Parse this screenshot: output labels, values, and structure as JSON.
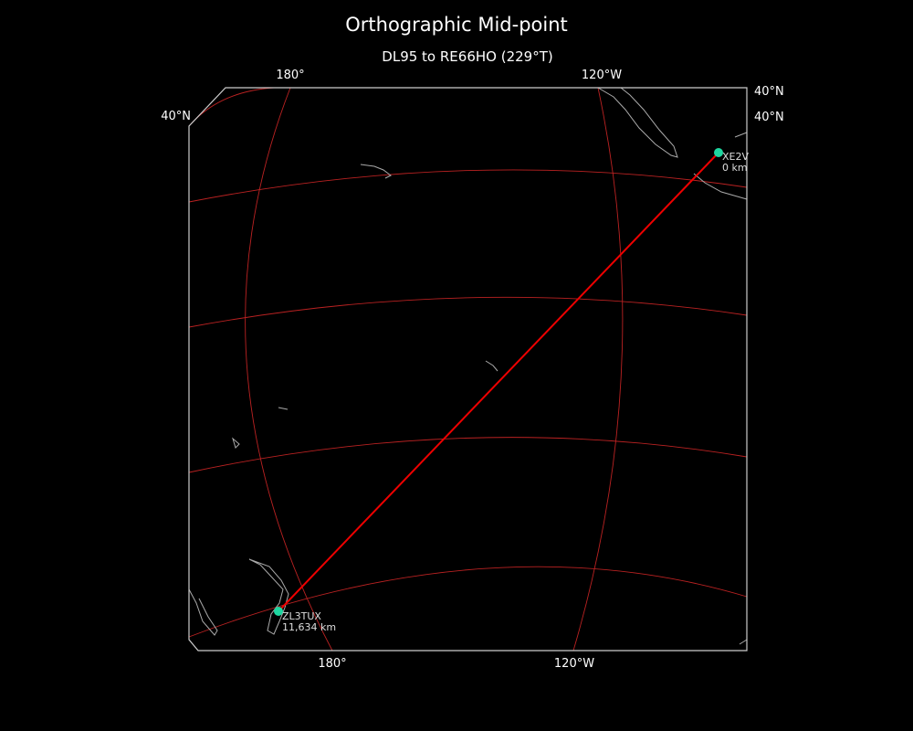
{
  "header": {
    "title": "Orthographic Mid-point",
    "subtitle": "DL95 to RE66HO (229°T)"
  },
  "grid_labels": {
    "top": [
      "180°",
      "120°W"
    ],
    "bottom": [
      "180°",
      "120°W"
    ],
    "left": [
      "40°N"
    ],
    "right": [
      "40°N",
      "40°N"
    ]
  },
  "stations": [
    {
      "call": "XE2V",
      "distance": "0 km"
    },
    {
      "call": "ZL3TUX",
      "distance": "11,634 km"
    }
  ]
}
